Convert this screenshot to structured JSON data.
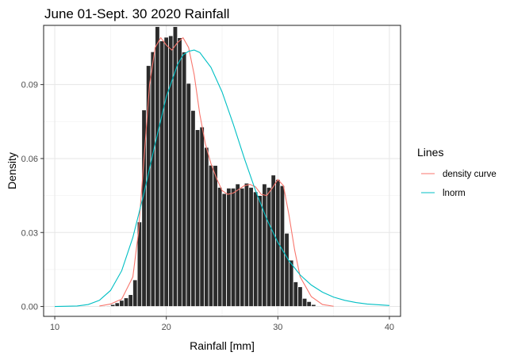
{
  "chart_data": {
    "type": "bar",
    "title": "June 01-Sept. 30 2020 Rainfall",
    "xlabel": "Rainfall [mm]",
    "ylabel": "Density",
    "xlim": [
      9,
      41
    ],
    "ylim": [
      -0.004,
      0.114
    ],
    "x_ticks": [
      10,
      20,
      30,
      40
    ],
    "x_tick_labels": [
      "10",
      "20",
      "30",
      "40"
    ],
    "y_ticks": [
      0,
      0.03,
      0.06,
      0.09
    ],
    "y_tick_labels": [
      "0.00",
      "0.03",
      "0.06",
      "0.09"
    ],
    "grid": true,
    "legend_position": "right",
    "bin_width": 0.4,
    "bins": {
      "x": [
        14.8,
        15.2,
        15.6,
        16.0,
        16.4,
        16.8,
        17.2,
        17.6,
        18.0,
        18.4,
        18.8,
        19.2,
        19.6,
        20.0,
        20.4,
        20.8,
        21.2,
        21.6,
        22.0,
        22.4,
        22.8,
        23.2,
        23.6,
        24.0,
        24.4,
        24.8,
        25.2,
        25.6,
        26.0,
        26.4,
        26.8,
        27.2,
        27.6,
        28.0,
        28.4,
        28.8,
        29.2,
        29.6,
        30.0,
        30.4,
        30.8,
        31.2,
        31.6,
        32.0,
        32.4,
        32.8,
        33.2
      ],
      "density": [
        0.0003,
        0.0008,
        0.0015,
        0.0025,
        0.0035,
        0.0048,
        0.0108,
        0.0343,
        0.0797,
        0.0977,
        0.1033,
        0.1135,
        0.1077,
        0.1092,
        0.1098,
        0.1135,
        0.109,
        0.1032,
        0.0905,
        0.0795,
        0.0717,
        0.0728,
        0.0645,
        0.0573,
        0.0572,
        0.0483,
        0.0458,
        0.048,
        0.048,
        0.0497,
        0.048,
        0.05,
        0.0483,
        0.0465,
        0.045,
        0.0497,
        0.0483,
        0.0533,
        0.0515,
        0.049,
        0.0297,
        0.0188,
        0.01,
        0.008,
        0.0033,
        0.002,
        0.0008
      ]
    },
    "series": [
      {
        "name": "density curve",
        "color": "#F8766D",
        "x": [
          14.0,
          15.0,
          16.0,
          17.0,
          17.5,
          18.0,
          18.5,
          19.0,
          19.5,
          20.0,
          20.5,
          21.0,
          21.5,
          22.0,
          22.5,
          23.0,
          23.5,
          24.0,
          24.5,
          25.0,
          25.5,
          26.0,
          26.5,
          27.0,
          27.5,
          28.0,
          28.5,
          29.0,
          29.5,
          30.0,
          30.5,
          31.0,
          31.5,
          32.0,
          33.0,
          34.0,
          35.0
        ],
        "y": [
          0.0002,
          0.001,
          0.003,
          0.012,
          0.03,
          0.06,
          0.09,
          0.105,
          0.109,
          0.106,
          0.104,
          0.107,
          0.109,
          0.105,
          0.094,
          0.078,
          0.066,
          0.058,
          0.052,
          0.047,
          0.0455,
          0.046,
          0.0475,
          0.049,
          0.0495,
          0.0485,
          0.0455,
          0.045,
          0.048,
          0.0515,
          0.049,
          0.037,
          0.023,
          0.012,
          0.004,
          0.0008,
          0.0001
        ]
      },
      {
        "name": "lnorm",
        "color": "#00BFC4",
        "x": [
          10.0,
          12.0,
          13.0,
          14.0,
          15.0,
          16.0,
          17.0,
          18.0,
          19.0,
          20.0,
          21.0,
          21.5,
          22.0,
          22.5,
          23.0,
          24.0,
          25.0,
          26.0,
          27.0,
          28.0,
          29.0,
          30.0,
          31.0,
          32.0,
          33.0,
          34.0,
          35.0,
          36.0,
          37.0,
          38.0,
          40.0
        ],
        "y": [
          0.0,
          0.0002,
          0.0008,
          0.0025,
          0.0065,
          0.0145,
          0.028,
          0.046,
          0.066,
          0.085,
          0.098,
          0.102,
          0.1035,
          0.104,
          0.103,
          0.097,
          0.087,
          0.074,
          0.06,
          0.047,
          0.0355,
          0.026,
          0.0185,
          0.0128,
          0.0087,
          0.0058,
          0.0038,
          0.0025,
          0.0016,
          0.001,
          0.0004
        ]
      }
    ],
    "legend": {
      "title": "Lines",
      "items": [
        {
          "label": "density curve",
          "color": "#F8766D"
        },
        {
          "label": "lnorm",
          "color": "#00BFC4"
        }
      ]
    }
  }
}
